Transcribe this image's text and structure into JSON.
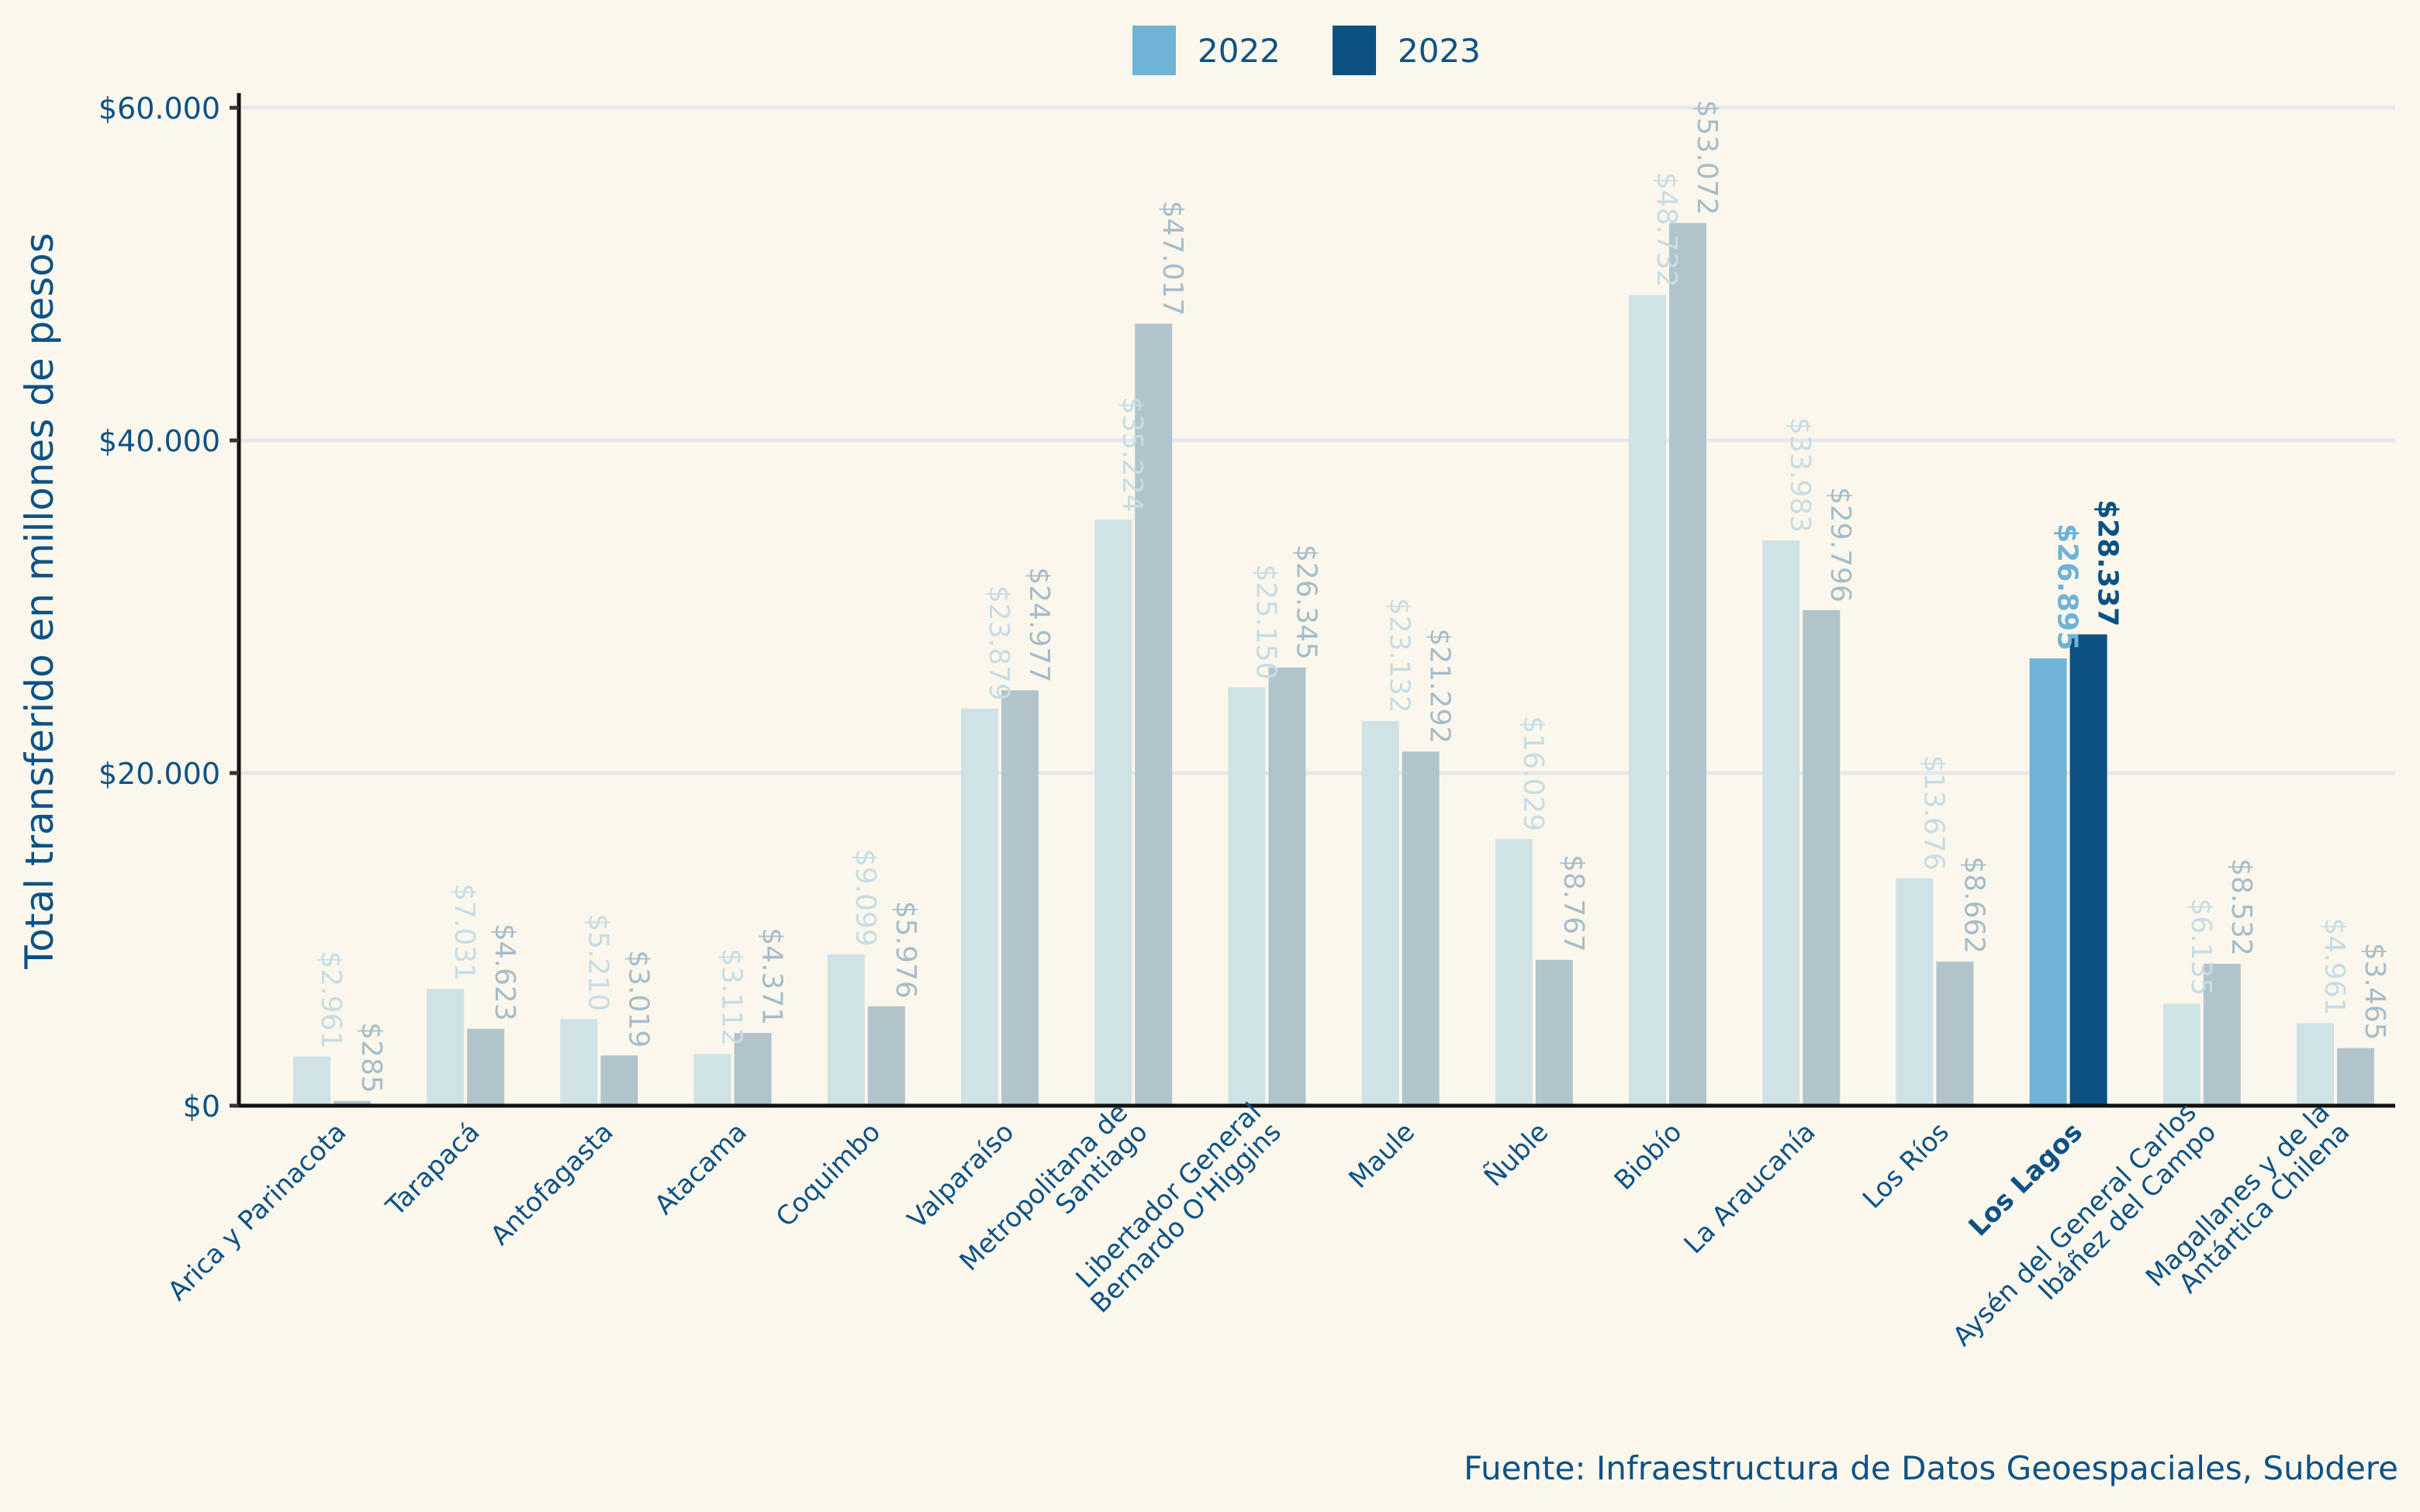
{
  "chart_data": {
    "type": "bar",
    "title": "",
    "xlabel": "",
    "ylabel": "Total transferido en millones de pesos",
    "ylim": [
      0,
      61000
    ],
    "yticks": [
      0,
      20000,
      40000,
      60000
    ],
    "ytick_labels": [
      "$0",
      "$20.000",
      "$40.000",
      "$60.000"
    ],
    "grid": "horizontal",
    "legend_position": "top-center",
    "caption": "Fuente: Infraestructura de Datos Geoespaciales, Subdere",
    "highlight_category": "Los Lagos",
    "categories": [
      "Arica y Parinacota",
      "Tarapacá",
      "Antofagasta",
      "Atacama",
      "Coquimbo",
      "Valparaíso",
      "Metropolitana de\nSantiago",
      "Libertador General\nBernardo O'Higgins",
      "Maule",
      "Ñuble",
      "Biobío",
      "La Araucanía",
      "Los Ríos",
      "Los Lagos",
      "Aysén del General Carlos\nIbáñez del Campo",
      "Magallanes y de la\nAntártica Chilena"
    ],
    "series": [
      {
        "name": "2022",
        "color": "#6fb3d6",
        "muted_color": "#cfe2e6",
        "muted_label_color": "#c7dde3",
        "values": [
          2961,
          7031,
          5210,
          3112,
          9099,
          23879,
          35224,
          25150,
          23132,
          16029,
          48732,
          33983,
          13676,
          26895,
          6135,
          4961
        ],
        "labels": [
          "$2.961",
          "$7.031",
          "$5.210",
          "$3.112",
          "$9.099",
          "$23.879",
          "$35.224",
          "$25.150",
          "$23.132",
          "$16.029",
          "$48.732",
          "$33.983",
          "$13.676",
          "$26.895",
          "$6.135",
          "$4.961"
        ]
      },
      {
        "name": "2023",
        "color": "#0b5282",
        "muted_color": "#b1c4cc",
        "muted_label_color": "#a6bdc8",
        "values": [
          285,
          4623,
          3019,
          4371,
          5976,
          24977,
          47017,
          26345,
          21292,
          8767,
          53072,
          29796,
          8662,
          28337,
          8532,
          3465
        ],
        "labels": [
          "$285",
          "$4.623",
          "$3.019",
          "$4.371",
          "$5.976",
          "$24.977",
          "$47.017",
          "$26.345",
          "$21.292",
          "$8.767",
          "$53.072",
          "$29.796",
          "$8.662",
          "$28.337",
          "$8.532",
          "$3.465"
        ]
      }
    ]
  }
}
